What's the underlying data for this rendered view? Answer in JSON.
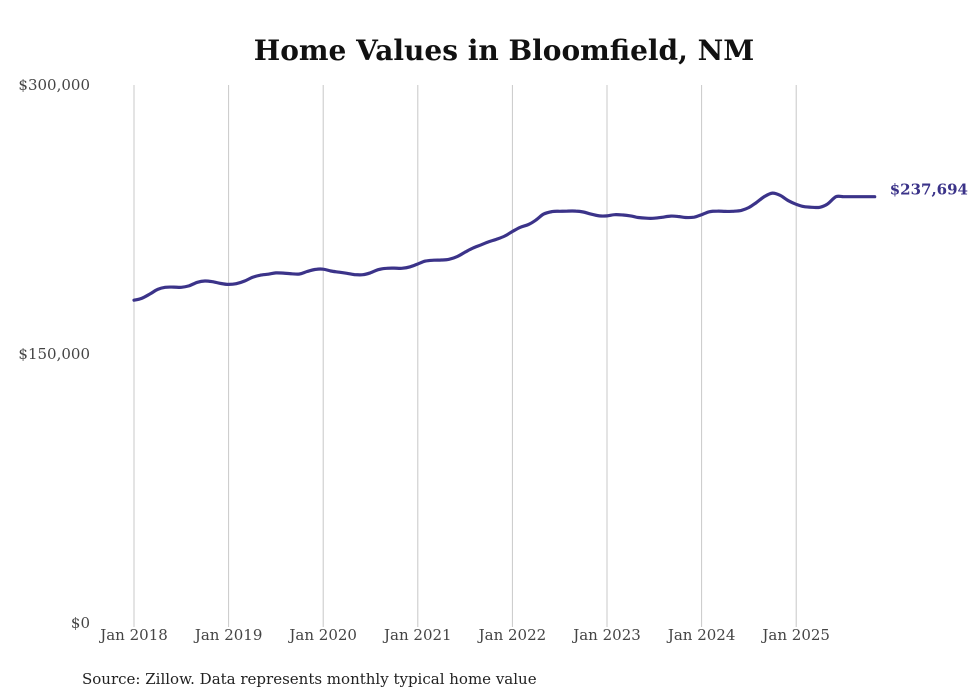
{
  "chart_data": {
    "type": "line",
    "title": "Home Values in Bloomfield, NM",
    "xlabel": "",
    "ylabel": "",
    "ylim": [
      0,
      300000
    ],
    "yticks": [
      {
        "value": 0,
        "label": "$0"
      },
      {
        "value": 150000,
        "label": "$150,000"
      },
      {
        "value": 300000,
        "label": "$300,000"
      }
    ],
    "xticks": [
      {
        "value": 2018.0,
        "label": "Jan 2018"
      },
      {
        "value": 2019.0,
        "label": "Jan 2019"
      },
      {
        "value": 2020.0,
        "label": "Jan 2020"
      },
      {
        "value": 2021.0,
        "label": "Jan 2021"
      },
      {
        "value": 2022.0,
        "label": "Jan 2022"
      },
      {
        "value": 2023.0,
        "label": "Jan 2023"
      },
      {
        "value": 2024.0,
        "label": "Jan 2024"
      },
      {
        "value": 2025.0,
        "label": "Jan 2025"
      }
    ],
    "grid": "vertical",
    "series": [
      {
        "name": "Typical home value",
        "color": "#3b3389",
        "end_label": "$237,694",
        "x": [
          2018.0,
          2018.08,
          2018.17,
          2018.25,
          2018.33,
          2018.42,
          2018.5,
          2018.58,
          2018.67,
          2018.75,
          2018.83,
          2018.92,
          2019.0,
          2019.08,
          2019.17,
          2019.25,
          2019.33,
          2019.42,
          2019.5,
          2019.58,
          2019.67,
          2019.75,
          2019.83,
          2019.92,
          2020.0,
          2020.08,
          2020.17,
          2020.25,
          2020.33,
          2020.42,
          2020.5,
          2020.58,
          2020.67,
          2020.75,
          2020.83,
          2020.92,
          2021.0,
          2021.08,
          2021.17,
          2021.25,
          2021.33,
          2021.42,
          2021.5,
          2021.58,
          2021.67,
          2021.75,
          2021.83,
          2021.92,
          2022.0,
          2022.08,
          2022.17,
          2022.25,
          2022.33,
          2022.42,
          2022.5,
          2022.58,
          2022.67,
          2022.75,
          2022.83,
          2022.92,
          2023.0,
          2023.08,
          2023.17,
          2023.25,
          2023.33,
          2023.42,
          2023.5,
          2023.58,
          2023.67,
          2023.75,
          2023.83,
          2023.92,
          2024.0,
          2024.08,
          2024.17,
          2024.25,
          2024.33,
          2024.42,
          2024.5,
          2024.58,
          2024.67,
          2024.75,
          2024.83,
          2024.92,
          2025.0,
          2025.08,
          2025.17,
          2025.25,
          2025.33,
          2025.42,
          2025.5,
          2025.58,
          2025.67,
          2025.75,
          2025.83
        ],
        "values": [
          180000,
          181000,
          183500,
          186000,
          187200,
          187300,
          187200,
          188000,
          190000,
          190700,
          190300,
          189300,
          188800,
          189200,
          190700,
          192700,
          193900,
          194500,
          195200,
          195100,
          194700,
          194600,
          196000,
          197200,
          197300,
          196300,
          195600,
          195000,
          194300,
          194200,
          195300,
          197000,
          197800,
          197900,
          197800,
          198600,
          200200,
          201800,
          202300,
          202400,
          202800,
          204400,
          206800,
          209000,
          210900,
          212600,
          213900,
          215800,
          218300,
          220600,
          222200,
          224700,
          228000,
          229400,
          229600,
          229700,
          229700,
          229200,
          228000,
          227000,
          227000,
          227700,
          227500,
          227000,
          226100,
          225700,
          225700,
          226200,
          226900,
          226700,
          226100,
          226300,
          227700,
          229300,
          229700,
          229500,
          229600,
          230100,
          231700,
          234500,
          238000,
          239700,
          238500,
          235400,
          233500,
          232200,
          231800,
          231800,
          233600,
          237694,
          237694,
          237694,
          237694,
          237694,
          237694
        ]
      }
    ]
  },
  "footer": {
    "source": "Source: Zillow. Data represents monthly typical home value"
  }
}
